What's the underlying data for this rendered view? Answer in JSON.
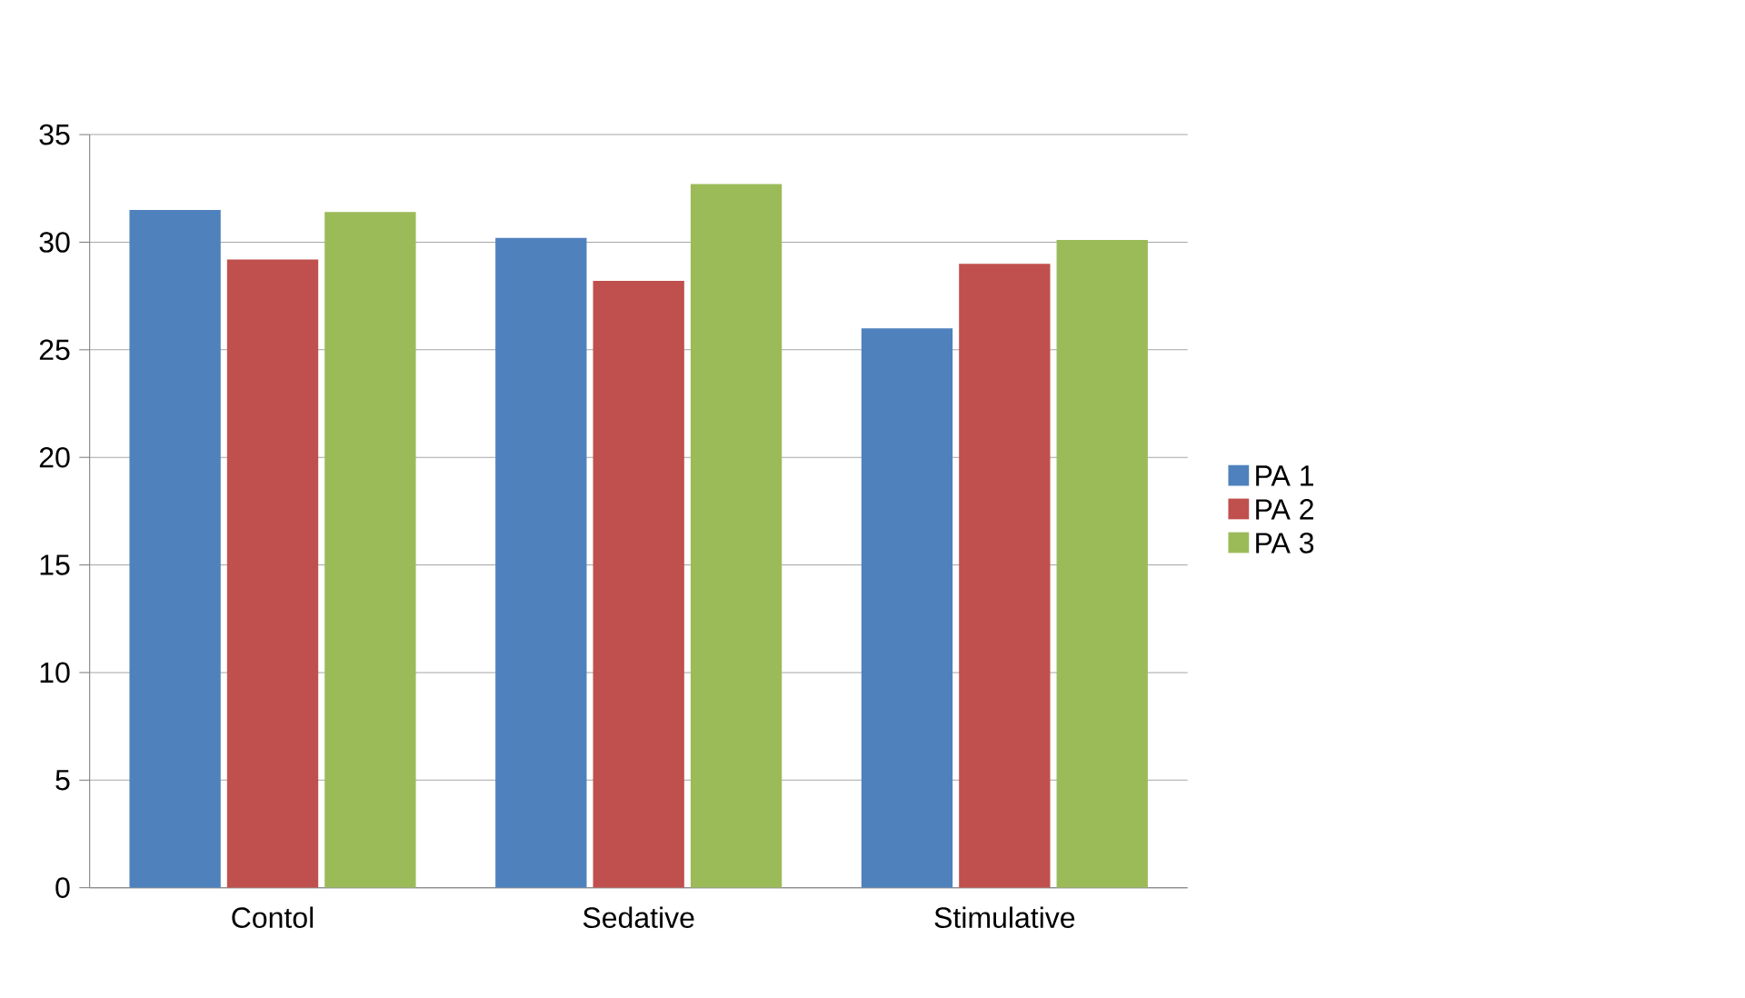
{
  "chart_data": {
    "type": "bar",
    "categories": [
      "Contol",
      "Sedative",
      "Stimulative"
    ],
    "series": [
      {
        "name": "PA 1",
        "color": "#4f81bd",
        "values": [
          31.5,
          30.2,
          26.0
        ]
      },
      {
        "name": "PA 2",
        "color": "#c0504d",
        "values": [
          29.2,
          28.2,
          29.0
        ]
      },
      {
        "name": "PA 3",
        "color": "#9bbb59",
        "values": [
          31.4,
          32.7,
          30.1
        ]
      }
    ],
    "ylim": [
      0,
      35
    ],
    "yticks": [
      0,
      5,
      10,
      15,
      20,
      25,
      30,
      35
    ],
    "grid": "y",
    "legend": "right"
  }
}
